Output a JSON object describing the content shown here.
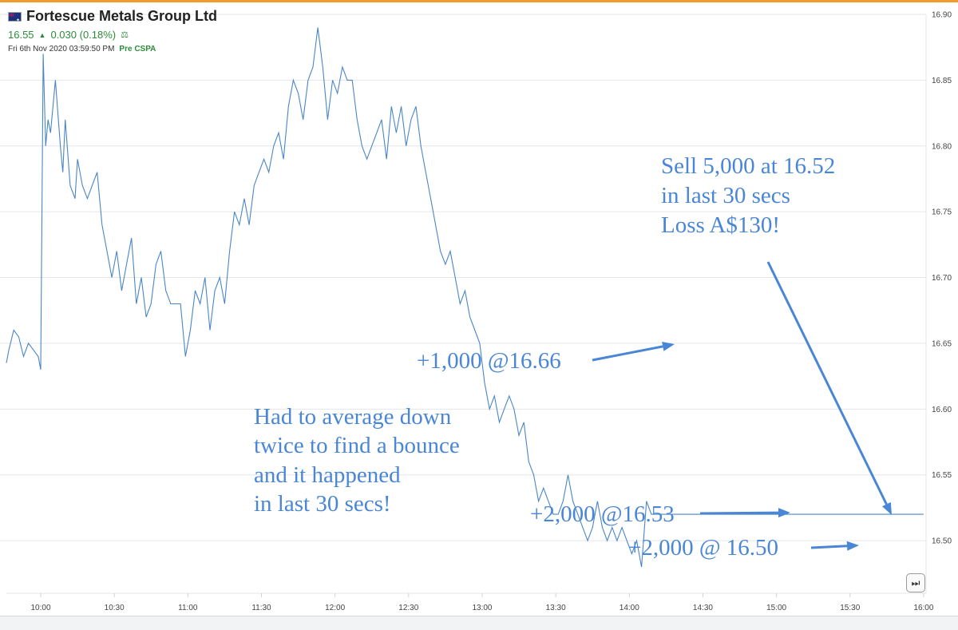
{
  "header": {
    "company": "Fortescue Metals Group Ltd",
    "price": "16.55",
    "change": "0.030 (0.18%)",
    "datetime": "Fri 6th Nov 2020 03:59:50 PM",
    "session": "Pre CSPA"
  },
  "colors": {
    "line": "#4a86c6",
    "annotation": "#4a86d6",
    "positive": "#2e8b3a"
  },
  "annotations": {
    "sell": [
      "Sell 5,000 at 16.52",
      "in last 30 secs",
      "Loss A$130!"
    ],
    "buy1": "+1,000 @16.66",
    "buy2": "+2,000 @16.53",
    "buy3": "+2,000 @ 16.50",
    "comment": [
      "Had to average down",
      "twice to find a bounce",
      "and it happened",
      "in last 30 secs!"
    ]
  },
  "chart_data": {
    "type": "line",
    "title": "Fortescue Metals Group Ltd",
    "xlabel": "",
    "ylabel": "",
    "ylim": [
      16.46,
      16.9
    ],
    "xlim": [
      "09:46",
      "16:01"
    ],
    "grid": true,
    "y_ticks": [
      "16.50",
      "16.55",
      "16.60",
      "16.65",
      "16.70",
      "16.75",
      "16.80",
      "16.85",
      "16.90"
    ],
    "x_ticks": [
      "10:00",
      "10:30",
      "11:00",
      "11:30",
      "12:00",
      "12:30",
      "13:00",
      "13:30",
      "14:00",
      "14:30",
      "15:00",
      "15:30",
      "16:00"
    ],
    "series": [
      {
        "x": [
          "09:46",
          "09:47",
          "09:49",
          "09:51",
          "09:53",
          "09:55",
          "09:57",
          "09:59",
          "10:00",
          "10:01",
          "10:02",
          "10:03",
          "10:04",
          "10:06",
          "10:08",
          "10:09",
          "10:10",
          "10:12",
          "10:14",
          "10:15",
          "10:17",
          "10:19",
          "10:21",
          "10:23",
          "10:25",
          "10:27",
          "10:29",
          "10:31",
          "10:33",
          "10:35",
          "10:37",
          "10:39",
          "10:41",
          "10:43",
          "10:45",
          "10:47",
          "10:49",
          "10:51",
          "10:53",
          "10:55",
          "10:57",
          "10:59",
          "11:01",
          "11:03",
          "11:05",
          "11:07",
          "11:09",
          "11:11",
          "11:13",
          "11:15",
          "11:17",
          "11:19",
          "11:21",
          "11:23",
          "11:25",
          "11:27",
          "11:29",
          "11:31",
          "11:33",
          "11:35",
          "11:37",
          "11:39",
          "11:41",
          "11:43",
          "11:45",
          "11:47",
          "11:49",
          "11:51",
          "11:53",
          "11:55",
          "11:57",
          "11:59",
          "12:01",
          "12:03",
          "12:05",
          "12:07",
          "12:09",
          "12:11",
          "12:13",
          "12:15",
          "12:17",
          "12:19",
          "12:21",
          "12:23",
          "12:25",
          "12:27",
          "12:29",
          "12:31",
          "12:33",
          "12:35",
          "12:37",
          "12:39",
          "12:41",
          "12:43",
          "12:45",
          "12:47",
          "12:49",
          "12:51",
          "12:53",
          "12:55",
          "12:57",
          "12:59",
          "13:01",
          "13:03",
          "13:05",
          "13:07",
          "13:09",
          "13:11",
          "13:13",
          "13:15",
          "13:17",
          "13:19",
          "13:21",
          "13:23",
          "13:25",
          "13:27",
          "13:29",
          "13:31",
          "13:33",
          "13:35",
          "13:37",
          "13:39",
          "13:41",
          "13:43",
          "13:45",
          "13:47",
          "13:49",
          "13:51",
          "13:53",
          "13:55",
          "13:57",
          "13:59",
          "14:01",
          "14:03",
          "14:05",
          "14:07",
          "14:09",
          "14:11",
          "14:13",
          "14:15",
          "14:17",
          "14:19",
          "14:21",
          "14:23",
          "14:25",
          "14:27",
          "14:29",
          "14:31",
          "14:33",
          "14:35",
          "14:37",
          "14:39",
          "14:41",
          "14:43",
          "14:45",
          "14:47",
          "14:49",
          "14:51",
          "14:53",
          "14:55",
          "14:57",
          "14:59",
          "15:01",
          "15:03",
          "15:05",
          "15:07",
          "15:09",
          "15:11",
          "15:13",
          "15:15",
          "15:17",
          "15:19",
          "15:21",
          "15:23",
          "15:25",
          "15:27",
          "15:29",
          "15:31",
          "15:33",
          "15:35",
          "15:37",
          "15:39",
          "15:41",
          "15:43",
          "15:45",
          "15:47",
          "15:49",
          "15:51",
          "15:53",
          "15:55",
          "15:57",
          "15:58",
          "15:59",
          "16:00"
        ],
        "values": [
          16.635,
          16.645,
          16.66,
          16.655,
          16.64,
          16.65,
          16.645,
          16.64,
          16.63,
          16.87,
          16.8,
          16.82,
          16.81,
          16.85,
          16.8,
          16.78,
          16.82,
          16.77,
          16.76,
          16.79,
          16.77,
          16.76,
          16.77,
          16.78,
          16.74,
          16.72,
          16.7,
          16.72,
          16.69,
          16.71,
          16.73,
          16.68,
          16.7,
          16.67,
          16.68,
          16.71,
          16.72,
          16.69,
          16.68,
          16.68,
          16.68,
          16.64,
          16.66,
          16.69,
          16.68,
          16.7,
          16.66,
          16.69,
          16.7,
          16.68,
          16.72,
          16.75,
          16.74,
          16.76,
          16.74,
          16.77,
          16.78,
          16.79,
          16.78,
          16.8,
          16.81,
          16.79,
          16.83,
          16.85,
          16.84,
          16.82,
          16.85,
          16.86,
          16.89,
          16.86,
          16.82,
          16.85,
          16.84,
          16.86,
          16.85,
          16.85,
          16.82,
          16.8,
          16.79,
          16.8,
          16.81,
          16.82,
          16.79,
          16.83,
          16.81,
          16.83,
          16.8,
          16.82,
          16.83,
          16.8,
          16.78,
          16.76,
          16.74,
          16.72,
          16.71,
          16.72,
          16.7,
          16.68,
          16.69,
          16.67,
          16.66,
          16.65,
          16.62,
          16.6,
          16.61,
          16.59,
          16.6,
          16.61,
          16.6,
          16.58,
          16.59,
          16.56,
          16.55,
          16.53,
          16.54,
          16.53,
          16.52,
          16.52,
          16.53,
          16.55,
          16.53,
          16.52,
          16.51,
          16.5,
          16.51,
          16.53,
          16.51,
          16.5,
          16.51,
          16.5,
          16.51,
          16.5,
          16.49,
          16.5,
          16.48,
          16.53,
          16.52,
          16.52,
          16.52,
          16.52,
          16.52,
          16.52,
          16.52,
          16.52,
          16.52,
          16.52,
          16.52,
          16.52,
          16.52,
          16.52,
          16.52,
          16.52,
          16.52,
          16.52,
          16.52,
          16.52,
          16.52,
          16.52,
          16.52,
          16.52,
          16.52,
          16.52,
          16.52,
          16.52,
          16.52,
          16.52,
          16.52,
          16.52,
          16.52,
          16.52,
          16.52,
          16.52,
          16.52,
          16.52,
          16.52,
          16.52,
          16.52,
          16.52,
          16.52,
          16.52,
          16.52,
          16.52,
          16.52,
          16.52,
          16.52,
          16.52,
          16.52,
          16.52,
          16.52,
          16.52,
          16.52,
          16.52,
          16.52,
          16.52
        ]
      }
    ]
  }
}
